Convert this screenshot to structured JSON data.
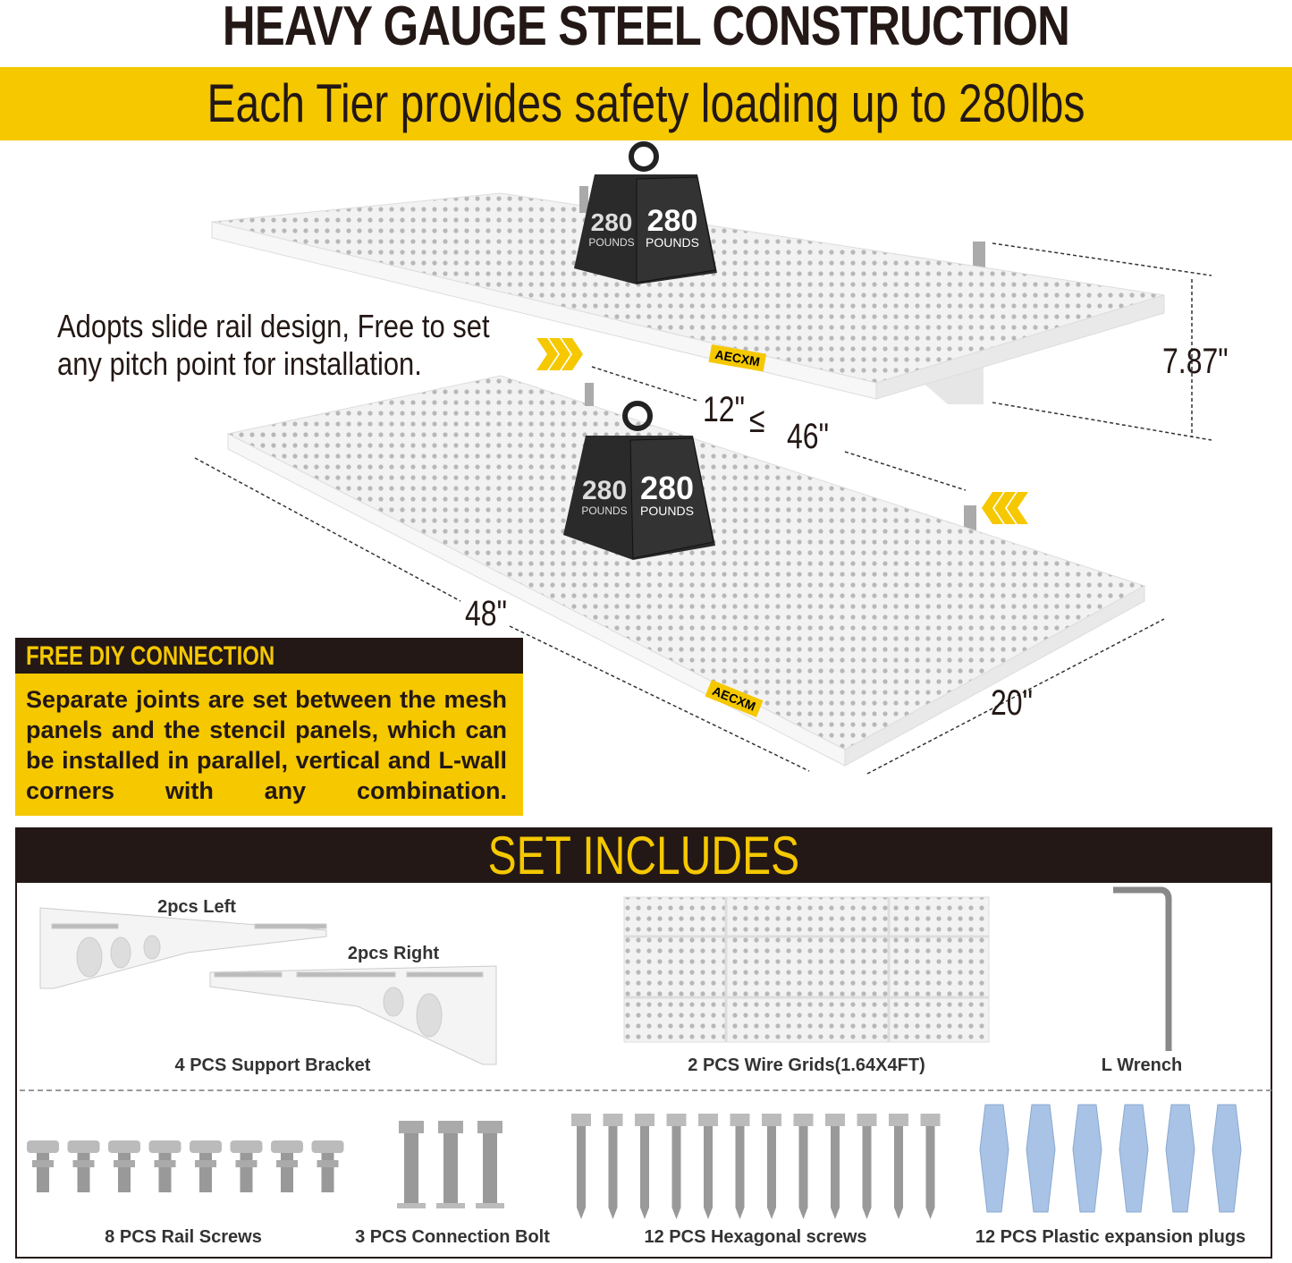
{
  "header": {
    "title": "HEAVY GAUGE STEEL CONSTRUCTION",
    "subtitle": "Each Tier provides safety loading up to 280lbs"
  },
  "colors": {
    "accent": "#f5c800",
    "dark": "#231815"
  },
  "diagram": {
    "rail_note_line1": "Adopts slide rail design, Free to set",
    "rail_note_line2": "any pitch point for installation.",
    "height": "7.87\"",
    "spacing_min": "12\"",
    "spacing_symbol": "≤",
    "spacing_max": "46\"",
    "length": "48\"",
    "depth": "20\"",
    "brand": "AECXM",
    "weight_value": "280",
    "weight_unit": "POUNDS"
  },
  "diy": {
    "heading": "FREE DIY CONNECTION",
    "text": "Separate joints are set between the mesh panels and the stencil panels, which can be installed in parallel, vertical and L-wall corners with any combination."
  },
  "set": {
    "heading": "SET INCLUDES",
    "bracket_left": "2pcs Left",
    "bracket_right": "2pcs Right",
    "items": [
      {
        "label": "4 PCS Support Bracket"
      },
      {
        "label": "2 PCS Wire Grids(1.64X4FT)"
      },
      {
        "label": "L Wrench"
      },
      {
        "label": "8 PCS Rail Screws"
      },
      {
        "label": "3 PCS Connection Bolt"
      },
      {
        "label": "12 PCS Hexagonal screws"
      },
      {
        "label": "12 PCS Plastic expansion plugs"
      }
    ]
  }
}
